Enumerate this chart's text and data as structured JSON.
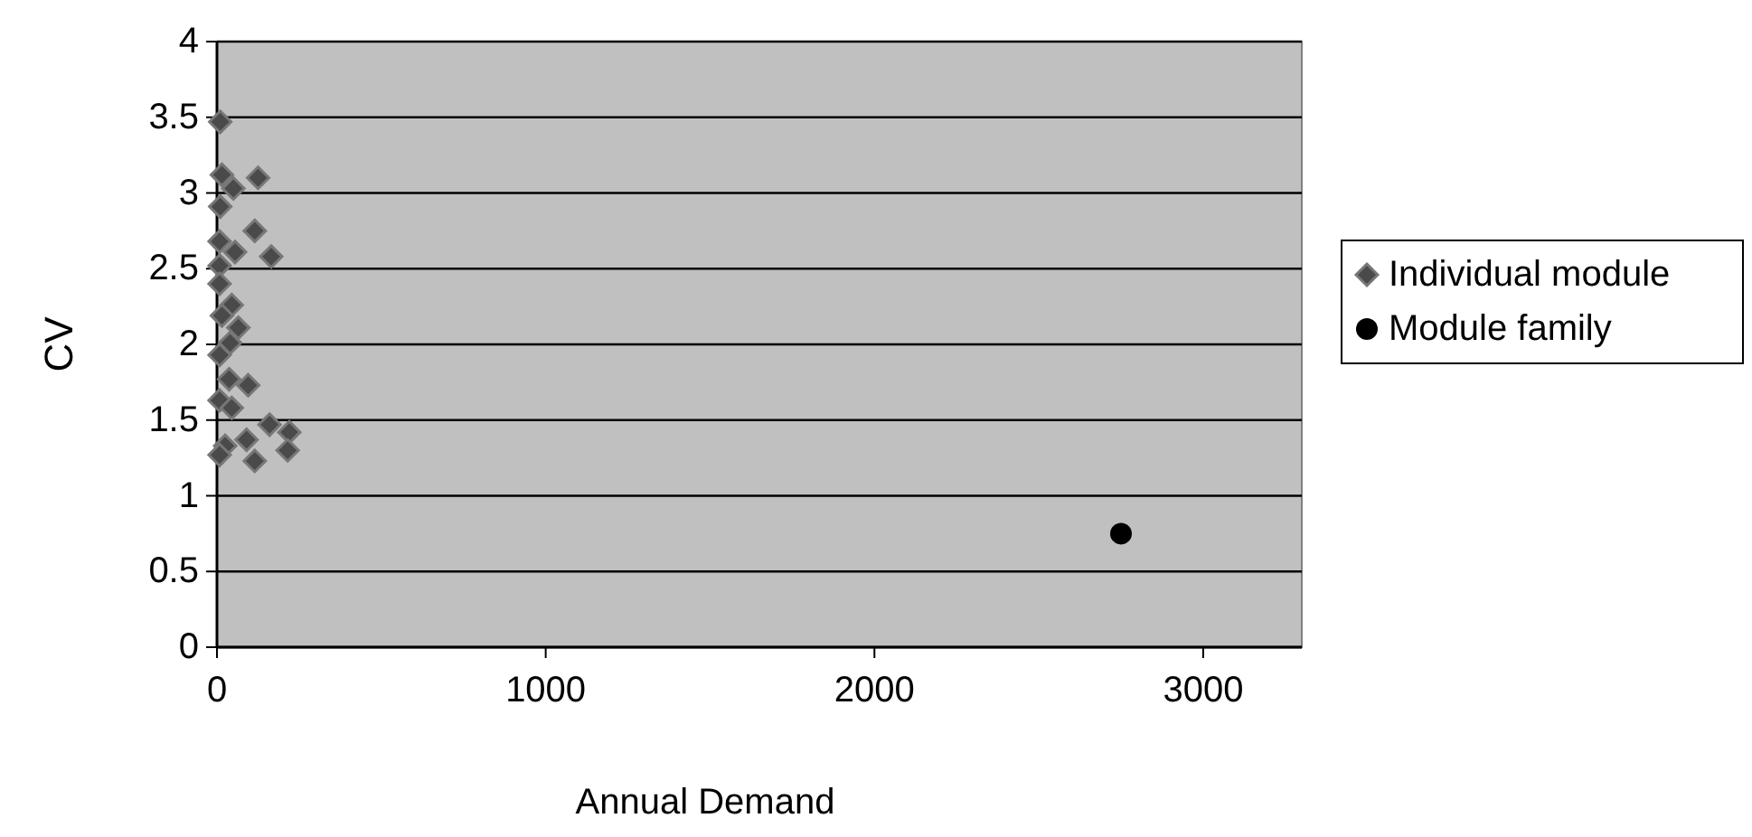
{
  "chart_data": {
    "type": "scatter",
    "xlabel": "Annual Demand",
    "ylabel": "CV",
    "xlim": [
      0,
      3300
    ],
    "ylim": [
      0,
      4
    ],
    "xticks": [
      0,
      1000,
      2000,
      3000
    ],
    "yticks": [
      0,
      0.5,
      1,
      1.5,
      2,
      2.5,
      3,
      3.5,
      4
    ],
    "grid": "y",
    "legend": "right",
    "series": [
      {
        "name": "Individual module",
        "color": "#4a4a4a",
        "marker": "diamond",
        "x": [
          10,
          15,
          125,
          50,
          10,
          115,
          8,
          55,
          165,
          8,
          8,
          45,
          15,
          65,
          40,
          8,
          37,
          95,
          8,
          45,
          160,
          220,
          25,
          90,
          215,
          115,
          8
        ],
        "values": [
          3.47,
          3.12,
          3.1,
          3.03,
          2.91,
          2.75,
          2.68,
          2.61,
          2.58,
          2.52,
          2.4,
          2.26,
          2.19,
          2.11,
          2.01,
          1.93,
          1.77,
          1.73,
          1.63,
          1.58,
          1.47,
          1.42,
          1.33,
          1.37,
          1.3,
          1.23,
          1.27
        ]
      },
      {
        "name": "Module family",
        "color": "#000000",
        "marker": "circle",
        "x": [
          2750
        ],
        "values": [
          0.75
        ]
      }
    ]
  }
}
